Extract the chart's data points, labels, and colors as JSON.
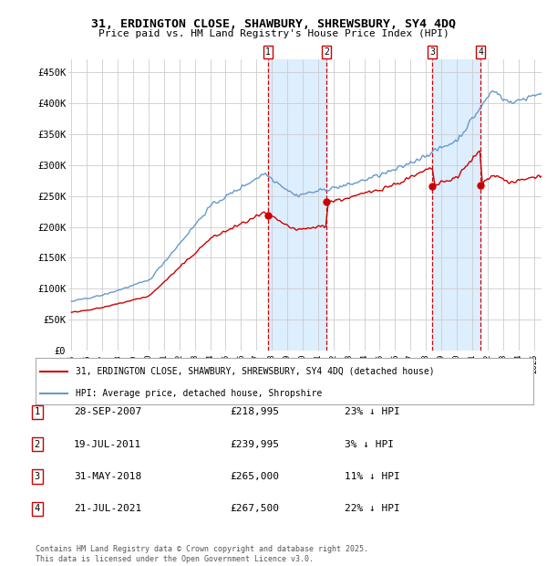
{
  "title1": "31, ERDINGTON CLOSE, SHAWBURY, SHREWSBURY, SY4 4DQ",
  "title2": "Price paid vs. HM Land Registry's House Price Index (HPI)",
  "ylabel_ticks": [
    "£0",
    "£50K",
    "£100K",
    "£150K",
    "£200K",
    "£250K",
    "£300K",
    "£350K",
    "£400K",
    "£450K"
  ],
  "ytick_values": [
    0,
    50000,
    100000,
    150000,
    200000,
    250000,
    300000,
    350000,
    400000,
    450000
  ],
  "xlim_start": 1994.8,
  "xlim_end": 2025.5,
  "ylim_min": 0,
  "ylim_max": 470000,
  "sale_dates": [
    2007.75,
    2011.55,
    2018.42,
    2021.55
  ],
  "sale_prices": [
    218995,
    239995,
    265000,
    267500
  ],
  "sale_labels": [
    "1",
    "2",
    "3",
    "4"
  ],
  "sale_annotations": [
    {
      "label": "1",
      "date": "28-SEP-2007",
      "price": "£218,995",
      "pct": "23% ↓ HPI"
    },
    {
      "label": "2",
      "date": "19-JUL-2011",
      "price": "£239,995",
      "pct": "3% ↓ HPI"
    },
    {
      "label": "3",
      "date": "31-MAY-2018",
      "price": "£265,000",
      "pct": "11% ↓ HPI"
    },
    {
      "label": "4",
      "date": "21-JUL-2021",
      "price": "£267,500",
      "pct": "22% ↓ HPI"
    }
  ],
  "red_line_color": "#cc0000",
  "blue_line_color": "#6699cc",
  "shade_color": "#ddeeff",
  "vline_color": "#cc0000",
  "legend_label_red": "31, ERDINGTON CLOSE, SHAWBURY, SHREWSBURY, SY4 4DQ (detached house)",
  "legend_label_blue": "HPI: Average price, detached house, Shropshire",
  "footer": "Contains HM Land Registry data © Crown copyright and database right 2025.\nThis data is licensed under the Open Government Licence v3.0.",
  "background_color": "#ffffff",
  "grid_color": "#cccccc"
}
